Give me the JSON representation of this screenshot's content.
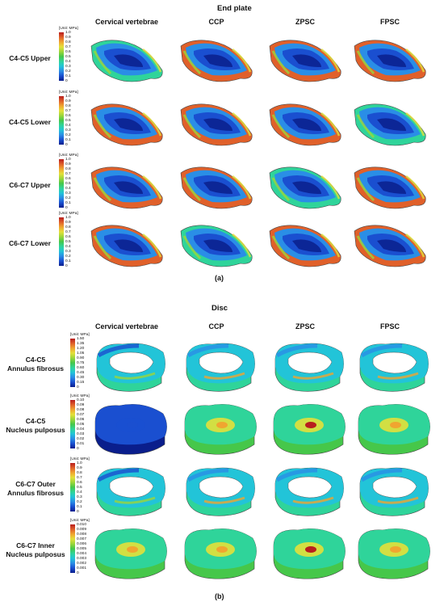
{
  "figure": {
    "part_a": {
      "title": "End plate",
      "caption": "(a)",
      "columns": [
        "Cervical vertebrae",
        "CCP",
        "ZPSC",
        "FPSC"
      ],
      "rows": [
        {
          "label": "C4-C5 Upper",
          "unit": "[Unit: MPa]",
          "ticks": [
            "1.0",
            "0.9",
            "0.8",
            "0.7",
            "0.6",
            "0.5",
            "0.4",
            "0.3",
            "0.2",
            "0.1",
            "0"
          ]
        },
        {
          "label": "C4-C5 Lower",
          "unit": "[Unit: MPa]",
          "ticks": [
            "1.0",
            "0.9",
            "0.8",
            "0.7",
            "0.6",
            "0.5",
            "0.4",
            "0.3",
            "0.2",
            "0.1",
            "0"
          ]
        },
        {
          "label": "C6-C7 Upper",
          "unit": "[Unit: MPa]",
          "ticks": [
            "1.0",
            "0.9",
            "0.8",
            "0.7",
            "0.6",
            "0.5",
            "0.4",
            "0.3",
            "0.2",
            "0.1",
            "0"
          ]
        },
        {
          "label": "C6-C7 Lower",
          "unit": "[Unit: MPa]",
          "ticks": [
            "1.0",
            "0.9",
            "0.8",
            "0.7",
            "0.6",
            "0.5",
            "0.4",
            "0.3",
            "0.2",
            "0.1",
            "0"
          ]
        }
      ]
    },
    "part_b": {
      "title": "Disc",
      "caption": "(b)",
      "columns": [
        "Cervical vertebrae",
        "CCP",
        "ZPSC",
        "FPSC"
      ],
      "rows": [
        {
          "label_line1": "C4-C5",
          "label_line2": "Annulus fibrosus",
          "unit": "[Unit: MPa]",
          "ticks": [
            "1.50",
            "1.35",
            "1.20",
            "1.05",
            "0.90",
            "0.75",
            "0.60",
            "0.45",
            "0.30",
            "0.15",
            "0"
          ]
        },
        {
          "label_line1": "C4-C5",
          "label_line2": "Nucleus pulposus",
          "unit": "[Unit: MPa]",
          "ticks": [
            "0.10",
            "0.09",
            "0.08",
            "0.07",
            "0.06",
            "0.05",
            "0.04",
            "0.03",
            "0.02",
            "0.01",
            "0"
          ]
        },
        {
          "label_line1": "C6-C7 Outer",
          "label_line2": "Annulus fibrosus",
          "unit": "[Unit: MPa]",
          "ticks": [
            "1.0",
            "0.9",
            "0.8",
            "0.7",
            "0.6",
            "0.5",
            "0.4",
            "0.3",
            "0.2",
            "0.1",
            "0"
          ]
        },
        {
          "label_line1": "C6-C7 Inner",
          "label_line2": "Nucleus pulposus",
          "unit": "[Unit: MPa]",
          "ticks": [
            "0.010",
            "0.009",
            "0.008",
            "0.007",
            "0.006",
            "0.005",
            "0.004",
            "0.003",
            "0.002",
            "0.001",
            "0"
          ]
        }
      ]
    },
    "colormap": [
      "#0a1e8c",
      "#1a4fd0",
      "#2a8ee6",
      "#22c4d8",
      "#2fd49a",
      "#46c74a",
      "#9cd63a",
      "#e4e03a",
      "#f0a530",
      "#e0602a",
      "#b81e1e"
    ]
  }
}
